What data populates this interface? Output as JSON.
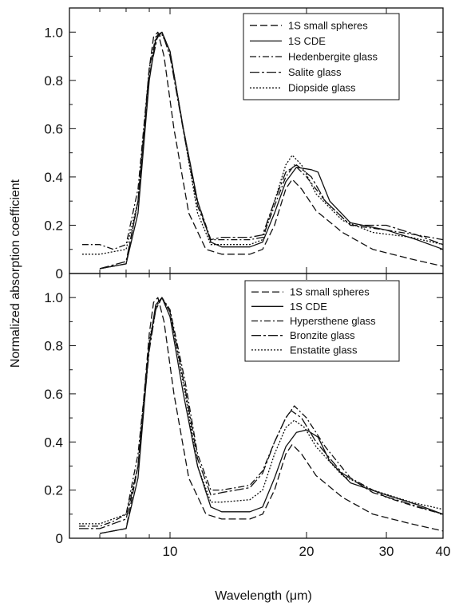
{
  "figure": {
    "ylabel": "Normalized absorption coefficient",
    "xlabel": "Wavelength (μm)"
  },
  "chart_data": [
    {
      "type": "line",
      "x_scale": "log",
      "xlim": [
        6,
        40
      ],
      "ylim": [
        0,
        1.1
      ],
      "x_ticks": [
        10,
        20,
        30,
        40
      ],
      "x_tick_labels": [
        "",
        "",
        "",
        ""
      ],
      "y_ticks": [
        0,
        0.2,
        0.4,
        0.6,
        0.8,
        1.0
      ],
      "y_tick_labels": [
        "0",
        "0.2",
        "0.4",
        "0.6",
        "0.8",
        "1.0"
      ],
      "legend_position": "top-right",
      "series": [
        {
          "name": "1S small spheres",
          "dash": "9 4",
          "points": [
            [
              7,
              0.02
            ],
            [
              8,
              0.04
            ],
            [
              8.5,
              0.3
            ],
            [
              9,
              0.85
            ],
            [
              9.2,
              0.98
            ],
            [
              9.4,
              1.0
            ],
            [
              9.7,
              0.9
            ],
            [
              10.2,
              0.6
            ],
            [
              11,
              0.25
            ],
            [
              12,
              0.1
            ],
            [
              13,
              0.08
            ],
            [
              15,
              0.08
            ],
            [
              16,
              0.1
            ],
            [
              17,
              0.2
            ],
            [
              18,
              0.35
            ],
            [
              18.6,
              0.39
            ],
            [
              19.5,
              0.35
            ],
            [
              21,
              0.26
            ],
            [
              24,
              0.17
            ],
            [
              28,
              0.1
            ],
            [
              34,
              0.06
            ],
            [
              40,
              0.03
            ]
          ]
        },
        {
          "name": "1S CDE",
          "dash": "",
          "points": [
            [
              7,
              0.02
            ],
            [
              8,
              0.04
            ],
            [
              8.5,
              0.25
            ],
            [
              9,
              0.8
            ],
            [
              9.3,
              0.97
            ],
            [
              9.6,
              1.0
            ],
            [
              10,
              0.92
            ],
            [
              10.7,
              0.6
            ],
            [
              11.5,
              0.3
            ],
            [
              12.3,
              0.13
            ],
            [
              13,
              0.11
            ],
            [
              15,
              0.11
            ],
            [
              16,
              0.13
            ],
            [
              17,
              0.25
            ],
            [
              18,
              0.38
            ],
            [
              19,
              0.44
            ],
            [
              20.5,
              0.43
            ],
            [
              21.2,
              0.42
            ],
            [
              22.5,
              0.3
            ],
            [
              25,
              0.21
            ],
            [
              30,
              0.18
            ],
            [
              35,
              0.14
            ],
            [
              40,
              0.1
            ]
          ]
        },
        {
          "name": "Hedenbergite glass",
          "dash": "8 3 2 3",
          "points": [
            [
              6.4,
              0.12
            ],
            [
              7,
              0.12
            ],
            [
              7.5,
              0.1
            ],
            [
              8,
              0.12
            ],
            [
              8.5,
              0.35
            ],
            [
              9,
              0.85
            ],
            [
              9.3,
              0.98
            ],
            [
              9.6,
              1.0
            ],
            [
              10,
              0.92
            ],
            [
              10.7,
              0.6
            ],
            [
              11.5,
              0.3
            ],
            [
              12.3,
              0.14
            ],
            [
              13,
              0.14
            ],
            [
              15,
              0.14
            ],
            [
              16,
              0.15
            ],
            [
              17,
              0.28
            ],
            [
              18,
              0.4
            ],
            [
              18.8,
              0.45
            ],
            [
              20,
              0.4
            ],
            [
              22,
              0.3
            ],
            [
              25,
              0.2
            ],
            [
              30,
              0.18
            ],
            [
              35,
              0.16
            ],
            [
              40,
              0.14
            ]
          ]
        },
        {
          "name": "Salite glass",
          "dash": "12 3 3 3",
          "points": [
            [
              7,
              0.02
            ],
            [
              8,
              0.05
            ],
            [
              8.5,
              0.3
            ],
            [
              9,
              0.82
            ],
            [
              9.4,
              0.99
            ],
            [
              9.6,
              1.0
            ],
            [
              10,
              0.9
            ],
            [
              10.8,
              0.55
            ],
            [
              11.5,
              0.28
            ],
            [
              12.3,
              0.14
            ],
            [
              13,
              0.15
            ],
            [
              15,
              0.15
            ],
            [
              16,
              0.16
            ],
            [
              17,
              0.3
            ],
            [
              18,
              0.42
            ],
            [
              19,
              0.45
            ],
            [
              20.5,
              0.4
            ],
            [
              22,
              0.3
            ],
            [
              25,
              0.2
            ],
            [
              30,
              0.2
            ],
            [
              35,
              0.16
            ],
            [
              40,
              0.12
            ]
          ]
        },
        {
          "name": "Diopside glass",
          "dash": "2 2",
          "points": [
            [
              6.4,
              0.08
            ],
            [
              7,
              0.08
            ],
            [
              8,
              0.1
            ],
            [
              8.5,
              0.3
            ],
            [
              9,
              0.85
            ],
            [
              9.3,
              0.97
            ],
            [
              9.6,
              0.99
            ],
            [
              10,
              0.92
            ],
            [
              10.8,
              0.55
            ],
            [
              11.5,
              0.25
            ],
            [
              12.3,
              0.12
            ],
            [
              13,
              0.12
            ],
            [
              15,
              0.12
            ],
            [
              16,
              0.14
            ],
            [
              17,
              0.3
            ],
            [
              18,
              0.45
            ],
            [
              18.6,
              0.49
            ],
            [
              19.5,
              0.45
            ],
            [
              21,
              0.33
            ],
            [
              24,
              0.22
            ],
            [
              28,
              0.17
            ],
            [
              34,
              0.15
            ],
            [
              40,
              0.12
            ]
          ]
        }
      ]
    },
    {
      "type": "line",
      "x_scale": "log",
      "xlim": [
        6,
        40
      ],
      "ylim": [
        0,
        1.1
      ],
      "x_ticks": [
        10,
        20,
        30,
        40
      ],
      "x_tick_labels": [
        "10",
        "20",
        "30",
        "40"
      ],
      "y_ticks": [
        0,
        0.2,
        0.4,
        0.6,
        0.8,
        1.0
      ],
      "y_tick_labels": [
        "0",
        "0.2",
        "0.4",
        "0.6",
        "0.8",
        "1.0"
      ],
      "legend_position": "top-right",
      "series": [
        {
          "name": "1S small spheres",
          "dash": "9 4",
          "points": [
            [
              7,
              0.02
            ],
            [
              8,
              0.04
            ],
            [
              8.5,
              0.3
            ],
            [
              9,
              0.85
            ],
            [
              9.2,
              0.98
            ],
            [
              9.4,
              1.0
            ],
            [
              9.7,
              0.9
            ],
            [
              10.2,
              0.6
            ],
            [
              11,
              0.25
            ],
            [
              12,
              0.1
            ],
            [
              13,
              0.08
            ],
            [
              15,
              0.08
            ],
            [
              16,
              0.1
            ],
            [
              17,
              0.2
            ],
            [
              18,
              0.35
            ],
            [
              18.6,
              0.39
            ],
            [
              19.5,
              0.35
            ],
            [
              21,
              0.26
            ],
            [
              24,
              0.17
            ],
            [
              28,
              0.1
            ],
            [
              34,
              0.06
            ],
            [
              40,
              0.03
            ]
          ]
        },
        {
          "name": "1S CDE",
          "dash": "",
          "points": [
            [
              7,
              0.02
            ],
            [
              8,
              0.04
            ],
            [
              8.5,
              0.25
            ],
            [
              9,
              0.8
            ],
            [
              9.3,
              0.97
            ],
            [
              9.6,
              1.0
            ],
            [
              10,
              0.92
            ],
            [
              10.7,
              0.6
            ],
            [
              11.5,
              0.3
            ],
            [
              12.3,
              0.13
            ],
            [
              13,
              0.11
            ],
            [
              15,
              0.11
            ],
            [
              16,
              0.13
            ],
            [
              17,
              0.25
            ],
            [
              18,
              0.38
            ],
            [
              19,
              0.44
            ],
            [
              20,
              0.45
            ],
            [
              21.2,
              0.42
            ],
            [
              22.5,
              0.32
            ],
            [
              25,
              0.23
            ],
            [
              30,
              0.18
            ],
            [
              35,
              0.14
            ],
            [
              40,
              0.1
            ]
          ]
        },
        {
          "name": "Hypersthene glass",
          "dash": "8 3 2 3",
          "points": [
            [
              6.3,
              0.05
            ],
            [
              7,
              0.05
            ],
            [
              7.5,
              0.07
            ],
            [
              8,
              0.1
            ],
            [
              8.5,
              0.35
            ],
            [
              9,
              0.8
            ],
            [
              9.3,
              0.95
            ],
            [
              9.6,
              1.0
            ],
            [
              10,
              0.95
            ],
            [
              10.8,
              0.65
            ],
            [
              11.5,
              0.35
            ],
            [
              12.3,
              0.2
            ],
            [
              13,
              0.2
            ],
            [
              15,
              0.22
            ],
            [
              16,
              0.28
            ],
            [
              17,
              0.4
            ],
            [
              18,
              0.5
            ],
            [
              18.8,
              0.55
            ],
            [
              20,
              0.5
            ],
            [
              22,
              0.38
            ],
            [
              25,
              0.25
            ],
            [
              30,
              0.17
            ],
            [
              35,
              0.13
            ],
            [
              40,
              0.1
            ]
          ]
        },
        {
          "name": "Bronzite glass",
          "dash": "12 3 3 3",
          "points": [
            [
              6.3,
              0.04
            ],
            [
              7,
              0.04
            ],
            [
              8,
              0.08
            ],
            [
              8.5,
              0.3
            ],
            [
              9,
              0.78
            ],
            [
              9.3,
              0.95
            ],
            [
              9.6,
              1.0
            ],
            [
              10,
              0.94
            ],
            [
              10.8,
              0.62
            ],
            [
              11.5,
              0.33
            ],
            [
              12.3,
              0.18
            ],
            [
              13,
              0.19
            ],
            [
              15,
              0.21
            ],
            [
              16,
              0.27
            ],
            [
              17,
              0.4
            ],
            [
              18,
              0.5
            ],
            [
              18.5,
              0.53
            ],
            [
              19.5,
              0.5
            ],
            [
              21,
              0.4
            ],
            [
              24,
              0.27
            ],
            [
              28,
              0.19
            ],
            [
              34,
              0.14
            ],
            [
              40,
              0.1
            ]
          ]
        },
        {
          "name": "Enstatite glass",
          "dash": "2 2",
          "points": [
            [
              6.3,
              0.06
            ],
            [
              7,
              0.06
            ],
            [
              8,
              0.1
            ],
            [
              8.5,
              0.3
            ],
            [
              9,
              0.82
            ],
            [
              9.3,
              0.96
            ],
            [
              9.6,
              1.0
            ],
            [
              10,
              0.94
            ],
            [
              10.8,
              0.6
            ],
            [
              11.5,
              0.3
            ],
            [
              12.3,
              0.15
            ],
            [
              13,
              0.15
            ],
            [
              15,
              0.16
            ],
            [
              16,
              0.2
            ],
            [
              17,
              0.35
            ],
            [
              18,
              0.46
            ],
            [
              18.8,
              0.49
            ],
            [
              19.8,
              0.46
            ],
            [
              21,
              0.38
            ],
            [
              24,
              0.26
            ],
            [
              28,
              0.2
            ],
            [
              34,
              0.15
            ],
            [
              40,
              0.12
            ]
          ]
        }
      ]
    }
  ]
}
